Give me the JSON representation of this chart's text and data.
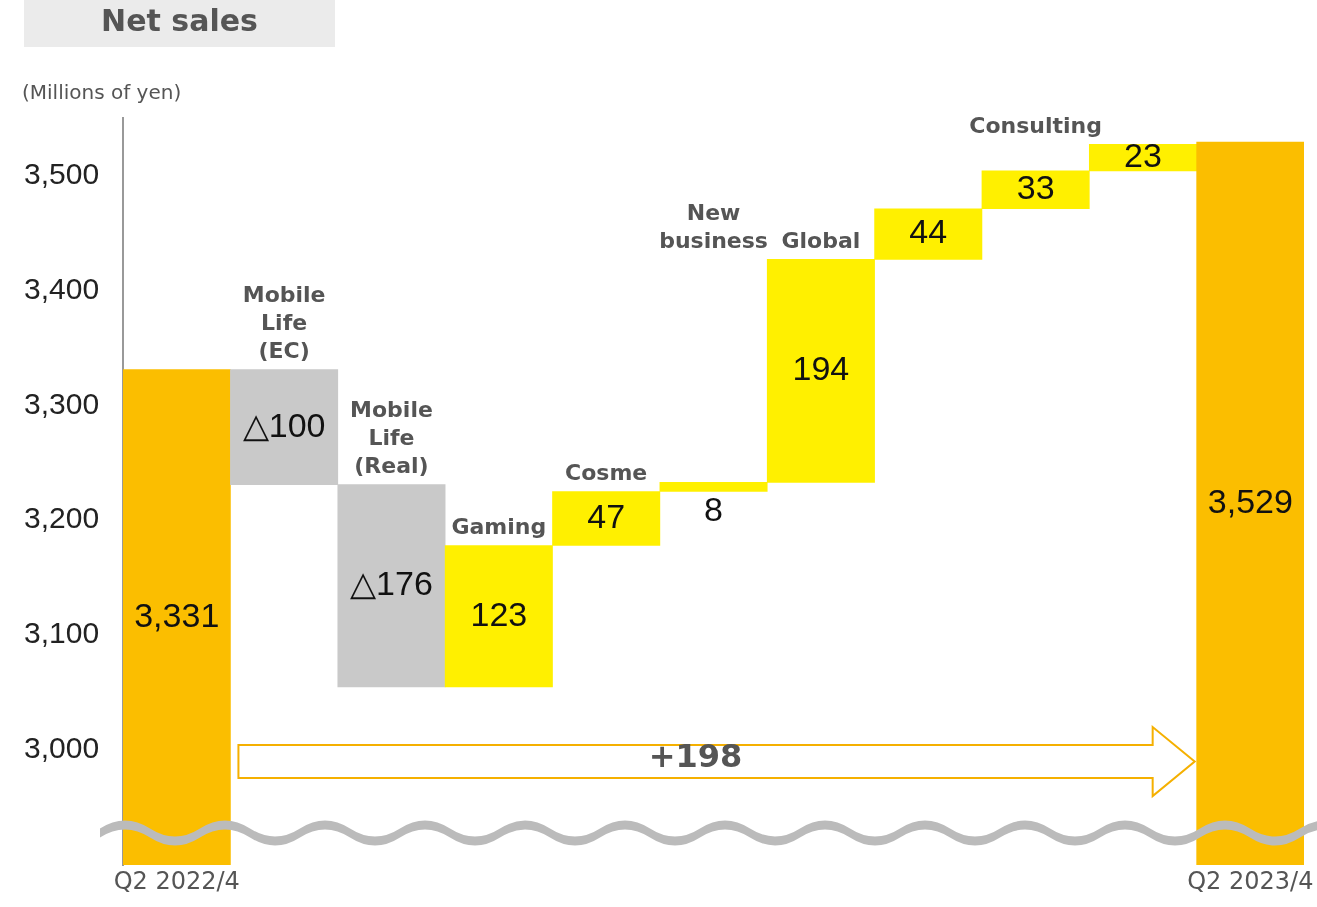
{
  "chart_data": {
    "type": "bar",
    "title": "Net sales",
    "ylabel": "(Millions of yen)",
    "categories": [
      "Q2 2022/4",
      "Mobile Life (EC)",
      "Mobile Life (Real)",
      "Gaming",
      "Cosme",
      "New business",
      "Global",
      null,
      "Consulting",
      null,
      "Q2 2023/4"
    ],
    "values": [
      3331,
      -100,
      -176,
      123,
      47,
      8,
      194,
      44,
      33,
      23,
      3529
    ],
    "base": [
      0,
      3331,
      3231,
      3055,
      3178,
      3225,
      3233,
      3427,
      3471,
      3504,
      0
    ],
    "colors": [
      "#fbbe00",
      "#c9c9c9",
      "#c9c9c9",
      "#fff000",
      "#fff000",
      "#fff000",
      "#fff000",
      "#fff000",
      "#fff000",
      "#fff000",
      "#fbbe00"
    ],
    "value_labels": [
      "3,331",
      "△100",
      "△176",
      "123",
      "47",
      "8",
      "194",
      "44",
      "33",
      "23",
      "3,529"
    ],
    "ylim": [
      2900,
      3550
    ],
    "yticks": [
      {
        "value": 3000,
        "label": "3,000"
      },
      {
        "value": 3100,
        "label": "3,100"
      },
      {
        "value": 3200,
        "label": "3,200"
      },
      {
        "value": 3300,
        "label": "3,300"
      },
      {
        "value": 3400,
        "label": "3,400"
      },
      {
        "value": 3500,
        "label": "3,500"
      }
    ],
    "grid": false,
    "legend": false,
    "annotations": [
      "+198"
    ]
  }
}
